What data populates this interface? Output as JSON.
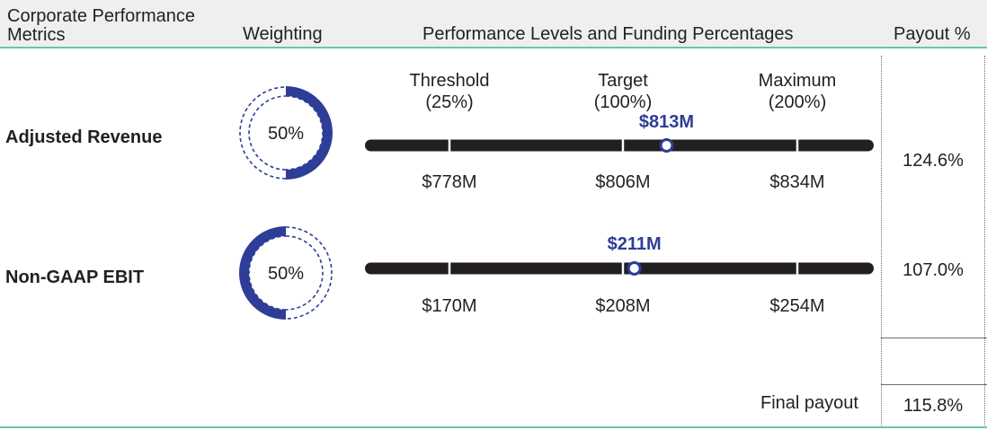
{
  "header": {
    "metrics_label": "Corporate Performance Metrics",
    "weighting_label": "Weighting",
    "levels_label": "Performance Levels and Funding Percentages",
    "payout_label": "Payout %"
  },
  "levels": [
    {
      "name": "Threshold",
      "pct": "(25%)"
    },
    {
      "name": "Target",
      "pct": "(100%)"
    },
    {
      "name": "Maximum",
      "pct": "(200%)"
    }
  ],
  "colors": {
    "accent_blue": "#2e3d98",
    "bar": "#231f20",
    "header_rule": "#6cc69b"
  },
  "chart_data": {
    "type": "table",
    "rows": [
      {
        "metric": "Adjusted Revenue",
        "weighting": "50%",
        "weighting_value": 50,
        "ring_side": "right",
        "threshold": 778,
        "target": 806,
        "maximum": 834,
        "threshold_label": "$778M",
        "target_label": "$806M",
        "maximum_label": "$834M",
        "actual": 813,
        "actual_label": "$813M",
        "payout": "124.6%"
      },
      {
        "metric": "Non-GAAP EBIT",
        "weighting": "50%",
        "weighting_value": 50,
        "ring_side": "left",
        "threshold": 170,
        "target": 208,
        "maximum": 254,
        "threshold_label": "$170M",
        "target_label": "$208M",
        "maximum_label": "$254M",
        "actual": 211,
        "actual_label": "$211M",
        "payout": "107.0%"
      }
    ],
    "final_payout_label": "Final payout",
    "final_payout": "115.8%"
  }
}
